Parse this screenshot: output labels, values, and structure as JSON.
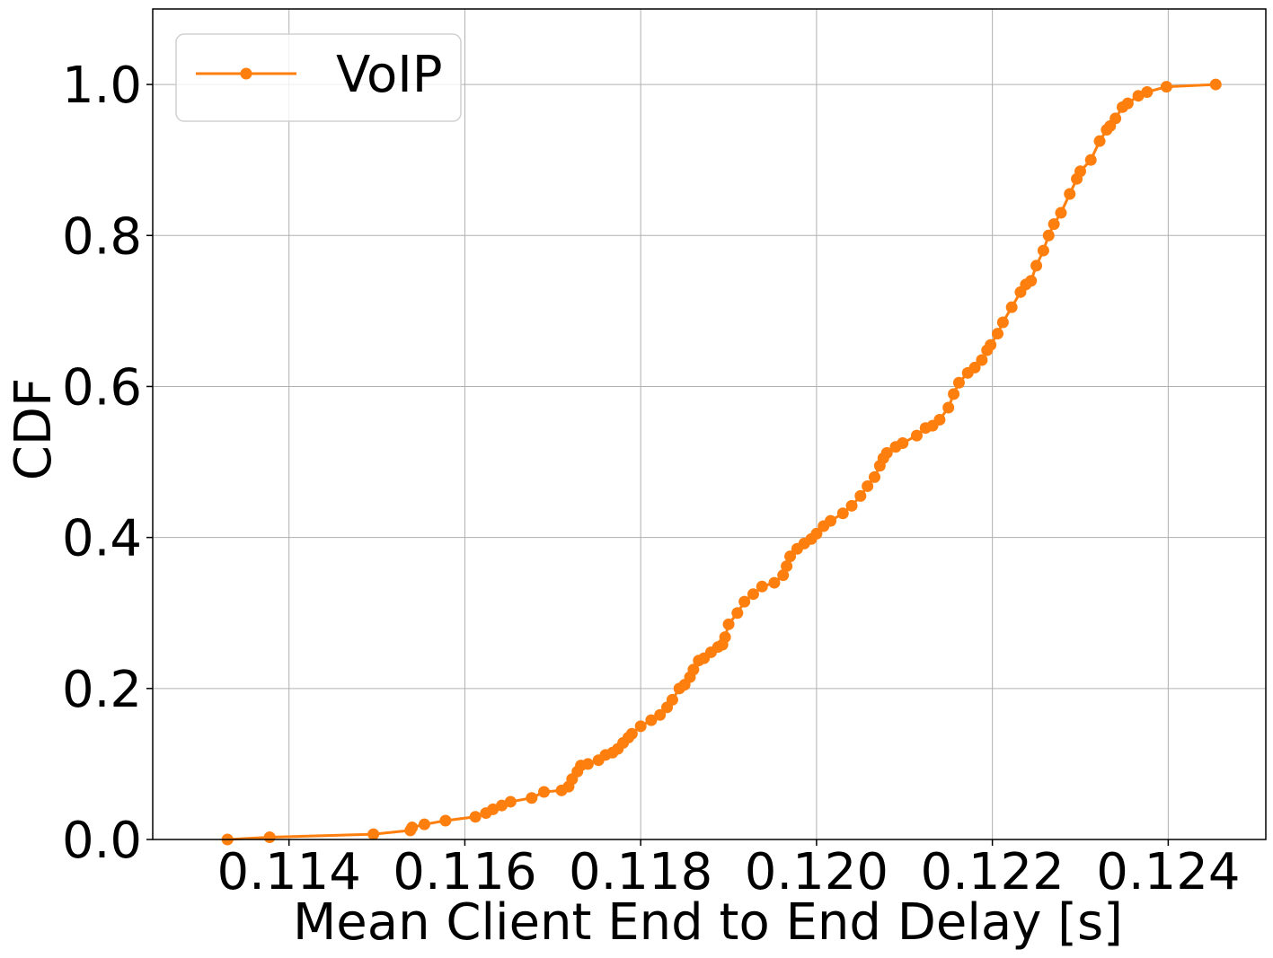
{
  "chart_data": {
    "type": "line",
    "xlabel": "Mean Client End to End Delay [s]",
    "ylabel": "CDF",
    "xlim": [
      0.11245,
      0.12511
    ],
    "ylim": [
      0.0,
      1.1
    ],
    "x_ticks": [
      "0.114",
      "0.116",
      "0.118",
      "0.120",
      "0.122",
      "0.124"
    ],
    "x_tick_values": [
      0.114,
      0.116,
      0.118,
      0.12,
      0.122,
      0.124
    ],
    "y_ticks": [
      "0.0",
      "0.2",
      "0.4",
      "0.6",
      "0.8",
      "1.0"
    ],
    "y_tick_values": [
      0.0,
      0.2,
      0.4,
      0.6,
      0.8,
      1.0
    ],
    "grid": true,
    "legend_position": "upper-left",
    "series": [
      {
        "name": "VoIP",
        "color": "#ff7f0e",
        "marker": "circle",
        "x": [
          0.1133,
          0.11378,
          0.11496,
          0.11538,
          0.1154,
          0.11554,
          0.11578,
          0.11612,
          0.11624,
          0.11632,
          0.11642,
          0.11652,
          0.11676,
          0.1169,
          0.1171,
          0.11718,
          0.11722,
          0.11728,
          0.11732,
          0.1174,
          0.11752,
          0.1176,
          0.11768,
          0.11774,
          0.1178,
          0.11786,
          0.1179,
          0.118,
          0.11812,
          0.11822,
          0.1183,
          0.11836,
          0.11844,
          0.1185,
          0.11856,
          0.1186,
          0.11866,
          0.11872,
          0.1188,
          0.11888,
          0.11893,
          0.11896,
          0.119,
          0.1191,
          0.11918,
          0.11928,
          0.11938,
          0.11952,
          0.11962,
          0.11966,
          0.1197,
          0.11978,
          0.11986,
          0.11994,
          0.12,
          0.12008,
          0.12016,
          0.1203,
          0.1204,
          0.1205,
          0.12058,
          0.12066,
          0.12072,
          0.12076,
          0.1208,
          0.1209,
          0.12098,
          0.12114,
          0.12124,
          0.12132,
          0.1214,
          0.1215,
          0.12156,
          0.12162,
          0.12172,
          0.1218,
          0.12188,
          0.12194,
          0.12198,
          0.12206,
          0.12212,
          0.12222,
          0.12232,
          0.12238,
          0.12244,
          0.1225,
          0.12258,
          0.12264,
          0.1227,
          0.12278,
          0.12288,
          0.12296,
          0.123,
          0.12312,
          0.12322,
          0.1233,
          0.12334,
          0.1234,
          0.12348,
          0.12354,
          0.12366,
          0.12376,
          0.12398,
          0.12454
        ],
        "y": [
          0.0,
          0.003,
          0.007,
          0.012,
          0.016,
          0.02,
          0.025,
          0.03,
          0.035,
          0.04,
          0.045,
          0.05,
          0.055,
          0.063,
          0.065,
          0.07,
          0.08,
          0.09,
          0.098,
          0.1,
          0.105,
          0.112,
          0.115,
          0.12,
          0.128,
          0.135,
          0.14,
          0.15,
          0.158,
          0.165,
          0.175,
          0.185,
          0.2,
          0.205,
          0.215,
          0.225,
          0.237,
          0.24,
          0.248,
          0.255,
          0.258,
          0.268,
          0.285,
          0.3,
          0.315,
          0.325,
          0.335,
          0.34,
          0.35,
          0.362,
          0.375,
          0.385,
          0.392,
          0.398,
          0.405,
          0.415,
          0.422,
          0.432,
          0.442,
          0.455,
          0.468,
          0.48,
          0.495,
          0.505,
          0.512,
          0.52,
          0.525,
          0.535,
          0.545,
          0.548,
          0.556,
          0.572,
          0.59,
          0.605,
          0.618,
          0.625,
          0.635,
          0.648,
          0.655,
          0.67,
          0.685,
          0.705,
          0.725,
          0.735,
          0.74,
          0.76,
          0.78,
          0.8,
          0.815,
          0.83,
          0.855,
          0.875,
          0.885,
          0.9,
          0.925,
          0.94,
          0.945,
          0.955,
          0.97,
          0.975,
          0.985,
          0.99,
          0.997,
          1.0
        ]
      }
    ]
  }
}
